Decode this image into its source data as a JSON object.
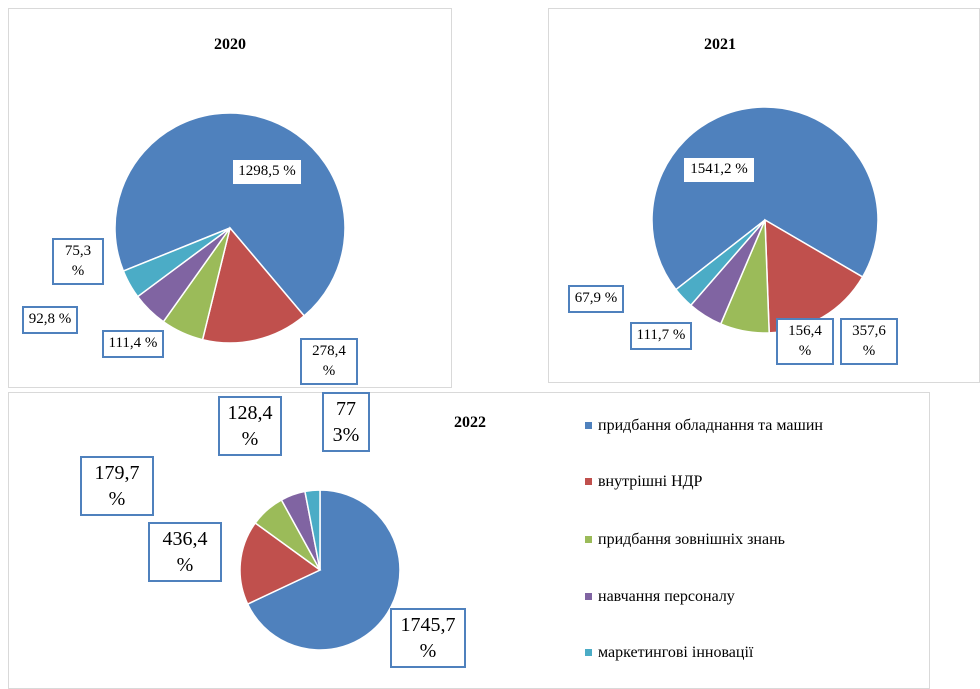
{
  "chart_data": [
    {
      "type": "pie",
      "title": "2020",
      "values": [
        1298.5,
        278.4,
        111.4,
        92.8,
        75.3
      ],
      "value_labels": [
        "1298,5 %",
        "278,4 %",
        "111,4 %",
        "92,8 %",
        "75,3 %"
      ],
      "colors": [
        "#4f81bd",
        "#c0504d",
        "#9bbb59",
        "#8064a2",
        "#4bacc6"
      ]
    },
    {
      "type": "pie",
      "title": "2021",
      "values": [
        1541.2,
        357.6,
        156.4,
        111.7,
        67.9
      ],
      "value_labels": [
        "1541,2 %",
        "357,6 %",
        "156,4 %",
        "111,7 %",
        "67,9 %"
      ],
      "colors": [
        "#4f81bd",
        "#c0504d",
        "#9bbb59",
        "#8064a2",
        "#4bacc6"
      ]
    },
    {
      "type": "pie",
      "title": "2022",
      "categories": [
        "придбання обладнання та машин",
        "внутрішні НДР",
        "придбання зовнішніх знань",
        "навчання персоналу",
        "маркетингові інновації"
      ],
      "values": [
        1745.7,
        436.4,
        179.7,
        128.4,
        77.3
      ],
      "value_labels": [
        "1745,7 %",
        "436,4 %",
        "179,7 %",
        "128,4 %",
        "77 3%"
      ],
      "colors": [
        "#4f81bd",
        "#c0504d",
        "#9bbb59",
        "#8064a2",
        "#4bacc6"
      ],
      "legend": "right"
    }
  ]
}
